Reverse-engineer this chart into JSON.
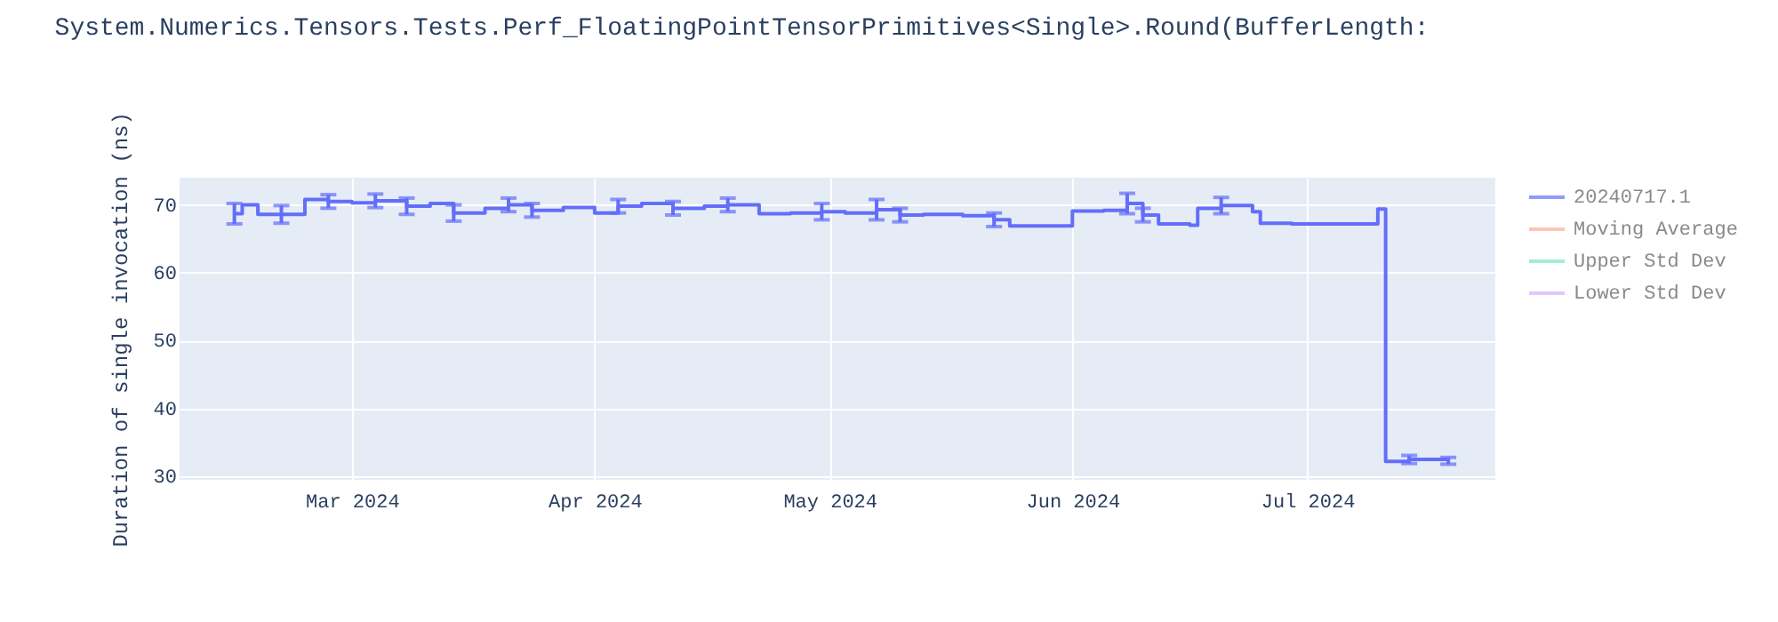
{
  "chart_data": {
    "type": "step",
    "title": "System.Numerics.Tensors.Tests.Perf_FloatingPointTensorPrimitives<Single>.Round(BufferLength:",
    "ylabel": "Duration of single invocation (ns)",
    "x": [
      "2024-02-15",
      "2024-02-16",
      "2024-02-18",
      "2024-02-21",
      "2024-02-24",
      "2024-02-27",
      "2024-03-01",
      "2024-03-04",
      "2024-03-08",
      "2024-03-11",
      "2024-03-14",
      "2024-03-18",
      "2024-03-21",
      "2024-03-24",
      "2024-03-28",
      "2024-04-01",
      "2024-04-04",
      "2024-04-07",
      "2024-04-11",
      "2024-04-15",
      "2024-04-18",
      "2024-04-22",
      "2024-04-26",
      "2024-04-30",
      "2024-05-03",
      "2024-05-07",
      "2024-05-10",
      "2024-05-13",
      "2024-05-18",
      "2024-05-22",
      "2024-05-24",
      "2024-05-31",
      "2024-06-01",
      "2024-06-05",
      "2024-06-08",
      "2024-06-10",
      "2024-06-12",
      "2024-06-16",
      "2024-06-17",
      "2024-06-20",
      "2024-06-24",
      "2024-06-25",
      "2024-06-29",
      "2024-07-09",
      "2024-07-10",
      "2024-07-11",
      "2024-07-14",
      "2024-07-19"
    ],
    "series": [
      {
        "name": "20240717.1",
        "color": "#636efa",
        "values": [
          68.7,
          70.0,
          68.6,
          68.6,
          70.8,
          70.5,
          70.3,
          70.6,
          69.8,
          70.2,
          68.8,
          69.5,
          70.0,
          69.2,
          69.6,
          68.8,
          69.8,
          70.2,
          69.5,
          69.8,
          70.0,
          68.7,
          68.8,
          69.0,
          68.8,
          69.3,
          68.5,
          68.6,
          68.4,
          67.8,
          66.9,
          66.9,
          69.1,
          69.2,
          70.2,
          68.5,
          67.2,
          67.0,
          69.5,
          69.9,
          69.0,
          67.3,
          67.2,
          67.2,
          69.4,
          32.2,
          32.5,
          32.3
        ],
        "errors": [
          1.5,
          null,
          null,
          1.3,
          null,
          1.0,
          null,
          1.0,
          1.2,
          null,
          1.2,
          null,
          1.0,
          1.0,
          null,
          null,
          1.0,
          null,
          1.0,
          null,
          1.0,
          null,
          null,
          1.2,
          null,
          1.5,
          1.0,
          null,
          null,
          1.0,
          null,
          null,
          null,
          null,
          1.5,
          1.0,
          null,
          null,
          null,
          1.2,
          null,
          null,
          null,
          null,
          null,
          null,
          0.6,
          0.5
        ]
      },
      {
        "name": "Moving Average",
        "color": "#f7b09c",
        "values": [
          null,
          null,
          null,
          null,
          null,
          null,
          null,
          null,
          null,
          null,
          null,
          null,
          null,
          null,
          null,
          null,
          null,
          null,
          null,
          null,
          null,
          null,
          null,
          null,
          null,
          null,
          null,
          null,
          null,
          null,
          null,
          null,
          null,
          null,
          null,
          null,
          null,
          null,
          null,
          null,
          null,
          null,
          null,
          null,
          null,
          null,
          null,
          null
        ]
      },
      {
        "name": "Upper Std Dev",
        "color": "#7fe5c8",
        "values": [
          null,
          null,
          null,
          null,
          null,
          null,
          null,
          null,
          null,
          null,
          null,
          null,
          null,
          null,
          null,
          null,
          null,
          null,
          null,
          null,
          null,
          null,
          null,
          null,
          null,
          null,
          null,
          null,
          null,
          null,
          null,
          null,
          null,
          null,
          null,
          null,
          null,
          null,
          null,
          null,
          null,
          null,
          null,
          null,
          null,
          null,
          null,
          null
        ]
      },
      {
        "name": "Lower Std Dev",
        "color": "#d5b1fc",
        "values": [
          null,
          null,
          null,
          null,
          null,
          null,
          null,
          null,
          null,
          null,
          null,
          null,
          null,
          null,
          null,
          null,
          null,
          null,
          null,
          null,
          null,
          null,
          null,
          null,
          null,
          null,
          null,
          null,
          null,
          null,
          null,
          null,
          null,
          null,
          null,
          null,
          null,
          null,
          null,
          null,
          null,
          null,
          null,
          null,
          null,
          null,
          null,
          null
        ]
      }
    ],
    "xlim": [
      "2024-02-08",
      "2024-07-25"
    ],
    "xticks": [
      {
        "value": "2024-03-01",
        "label": "Mar 2024"
      },
      {
        "value": "2024-04-01",
        "label": "Apr 2024"
      },
      {
        "value": "2024-05-01",
        "label": "May 2024"
      },
      {
        "value": "2024-06-01",
        "label": "Jun 2024"
      },
      {
        "value": "2024-07-01",
        "label": "Jul 2024"
      }
    ],
    "ylim": [
      29.5,
      74
    ],
    "yticks": [
      30,
      40,
      50,
      60,
      70
    ],
    "grid": true,
    "legend": "top right"
  }
}
